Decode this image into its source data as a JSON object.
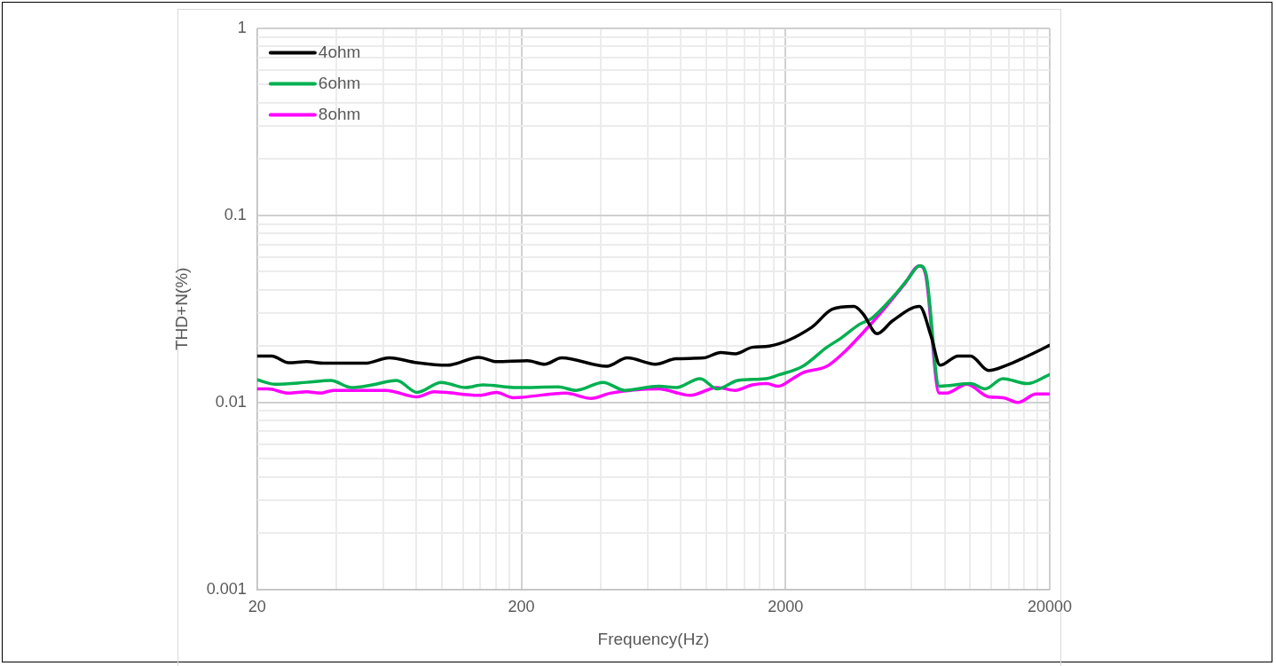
{
  "chart_data": {
    "type": "line",
    "xlabel": "Frequency(Hz)",
    "ylabel": "THD+N(%)",
    "log": "xy",
    "grid": true,
    "legend": "top left",
    "marker": "none",
    "line_style": "solid",
    "xlim": [
      20,
      20000
    ],
    "ylim": [
      0.001,
      1
    ],
    "xticks": [
      20,
      {
        "value": 40,
        "label": null
      },
      {
        "value": 60,
        "label": null
      },
      {
        "value": 80,
        "label": null
      },
      {
        "value": 100,
        "label": null
      },
      {
        "value": 120,
        "label": null
      },
      {
        "value": 140,
        "label": null
      },
      {
        "value": 160,
        "label": null
      },
      {
        "value": 180,
        "label": null
      },
      200,
      {
        "value": 400,
        "label": null
      },
      {
        "value": 600,
        "label": null
      },
      {
        "value": 800,
        "label": null
      },
      {
        "value": 1000,
        "label": null
      },
      {
        "value": 1200,
        "label": null
      },
      {
        "value": 1400,
        "label": null
      },
      {
        "value": 1600,
        "label": null
      },
      {
        "value": 1800,
        "label": null
      },
      2000,
      {
        "value": 4000,
        "label": null
      },
      {
        "value": 6000,
        "label": null
      },
      {
        "value": 8000,
        "label": null
      },
      {
        "value": 10000,
        "label": null
      },
      {
        "value": 12000,
        "label": null
      },
      {
        "value": 14000,
        "label": null
      },
      {
        "value": 16000,
        "label": null
      },
      {
        "value": 18000,
        "label": null
      },
      20000
    ],
    "yticks": [
      0.001,
      {
        "value": 0.002,
        "label": null
      },
      {
        "value": 0.003,
        "label": null
      },
      {
        "value": 0.004,
        "label": null
      },
      {
        "value": 0.005,
        "label": null
      },
      {
        "value": 0.006,
        "label": null
      },
      {
        "value": 0.007,
        "label": null
      },
      {
        "value": 0.008,
        "label": null
      },
      {
        "value": 0.009,
        "label": null
      },
      0.01,
      {
        "value": 0.02,
        "label": null
      },
      {
        "value": 0.03,
        "label": null
      },
      {
        "value": 0.04,
        "label": null
      },
      {
        "value": 0.05,
        "label": null
      },
      {
        "value": 0.06,
        "label": null
      },
      {
        "value": 0.07,
        "label": null
      },
      {
        "value": 0.08,
        "label": null
      },
      {
        "value": 0.09,
        "label": null
      },
      0.1,
      {
        "value": 0.2,
        "label": null
      },
      {
        "value": 0.3,
        "label": null
      },
      {
        "value": 0.4,
        "label": null
      },
      {
        "value": 0.5,
        "label": null
      },
      {
        "value": 0.6,
        "label": null
      },
      {
        "value": 0.7,
        "label": null
      },
      {
        "value": 0.8,
        "label": null
      },
      {
        "value": 0.9,
        "label": null
      },
      1
    ],
    "series": [
      {
        "name": "4ohm",
        "color": "#000000",
        "x": [
          20,
          22.7,
          26.3,
          30.8,
          35.7,
          51.2,
          63.2,
          80.6,
          105,
          138,
          161,
          211,
          245,
          284,
          421,
          504,
          643,
          769,
          980,
          1138,
          1290,
          1497,
          1737,
          2512,
          3006,
          3630,
          3926,
          4446,
          5082,
          6428,
          7112,
          7692,
          8996,
          10040,
          11740,
          13740,
          16070,
          20000
        ],
        "values": [
          0.0177,
          0.0177,
          0.0163,
          0.0165,
          0.0162,
          0.0162,
          0.0173,
          0.0163,
          0.0158,
          0.0174,
          0.0165,
          0.0167,
          0.016,
          0.0173,
          0.0156,
          0.0173,
          0.016,
          0.0171,
          0.0173,
          0.0185,
          0.0182,
          0.0197,
          0.02,
          0.0252,
          0.0315,
          0.0326,
          0.0298,
          0.0233,
          0.0273,
          0.0326,
          0.0226,
          0.0158,
          0.0177,
          0.0177,
          0.0148,
          0.0158,
          0.0174,
          0.0202
        ]
      },
      {
        "name": "6ohm",
        "color": "#00b050",
        "x": [
          20,
          23.4,
          30.8,
          38,
          45.5,
          54.5,
          67.4,
          80.6,
          99.6,
          123,
          143,
          192,
          276,
          322,
          408,
          492,
          662,
          769,
          950,
          1102,
          1320,
          1684,
          1878,
          2323,
          2866,
          3250,
          3800,
          4244,
          5082,
          5804,
          6428,
          6792,
          7634,
          10040,
          11380,
          13300,
          16440,
          20000
        ],
        "values": [
          0.0132,
          0.0125,
          0.0128,
          0.0131,
          0.012,
          0.0124,
          0.0131,
          0.0113,
          0.0128,
          0.012,
          0.0124,
          0.012,
          0.0121,
          0.0116,
          0.0128,
          0.0116,
          0.0122,
          0.012,
          0.0134,
          0.0118,
          0.0131,
          0.0134,
          0.014,
          0.0156,
          0.0197,
          0.0221,
          0.0261,
          0.0282,
          0.0364,
          0.0455,
          0.0538,
          0.0493,
          0.0122,
          0.0126,
          0.0118,
          0.0134,
          0.0126,
          0.0141
        ]
      },
      {
        "name": "8ohm",
        "color": "#ff00ff",
        "x": [
          20,
          22,
          26.3,
          30.8,
          34.6,
          38.9,
          61.3,
          80.6,
          93.5,
          138,
          161,
          186,
          294,
          368,
          434,
          662,
          871,
          1102,
          1290,
          1497,
          1697,
          1878,
          2146,
          2323,
          2866,
          3352,
          4016,
          4808,
          5620,
          6428,
          6792,
          7634,
          8130,
          9720,
          11740,
          13300,
          15200,
          17780,
          20000
        ],
        "values": [
          0.0118,
          0.0118,
          0.0112,
          0.0114,
          0.0112,
          0.0116,
          0.0116,
          0.0107,
          0.0114,
          0.0109,
          0.0113,
          0.0106,
          0.0112,
          0.0105,
          0.0112,
          0.0118,
          0.0109,
          0.012,
          0.0116,
          0.0124,
          0.0126,
          0.0122,
          0.0135,
          0.0144,
          0.0156,
          0.0187,
          0.0244,
          0.0326,
          0.0426,
          0.0538,
          0.0476,
          0.0112,
          0.0112,
          0.0125,
          0.0107,
          0.0106,
          0.01,
          0.0111,
          0.0111
        ]
      }
    ]
  }
}
